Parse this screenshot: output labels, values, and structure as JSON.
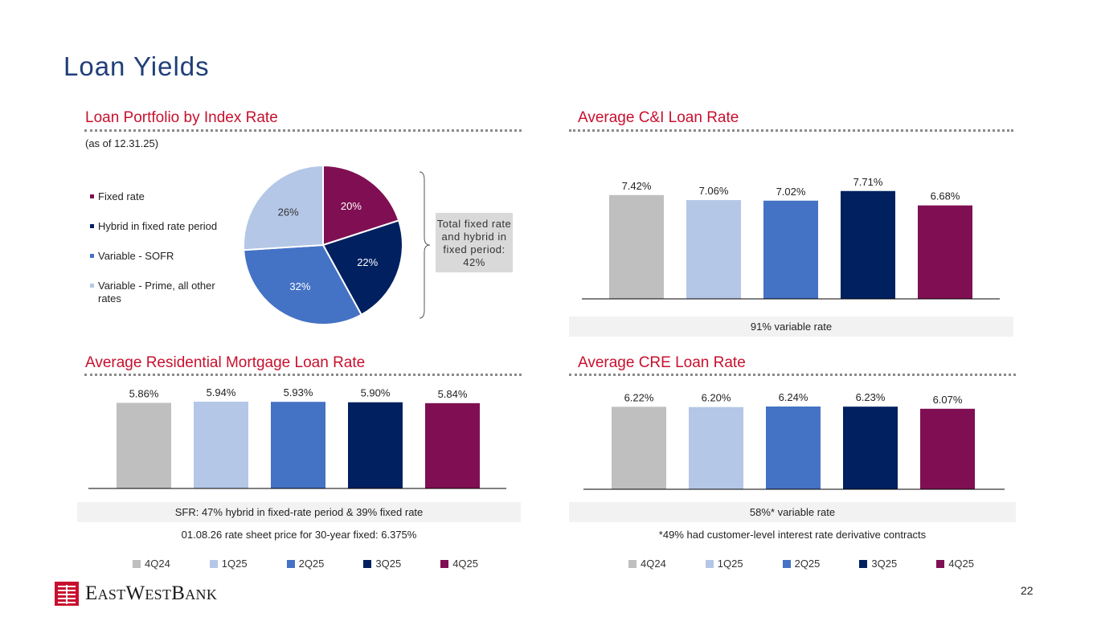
{
  "page": {
    "title": "Loan Yields",
    "page_number": "22",
    "logo_text": "EastWestBank"
  },
  "colors": {
    "title": "#1f3f78",
    "section_title": "#c8102e",
    "series": [
      "#bfbfbf",
      "#b4c7e7",
      "#4472c4",
      "#002060",
      "#7f0f52"
    ],
    "pie": [
      "#7f0f52",
      "#002060",
      "#4472c4",
      "#b4c7e7"
    ]
  },
  "sections": {
    "portfolio": {
      "title": "Loan Portfolio by Index Rate",
      "subtitle": "(as of 12.31.25)",
      "callout": "Total fixed rate and hybrid in fixed period: 42%"
    },
    "ci": {
      "title": "Average C&I Loan Rate",
      "note": "91% variable rate"
    },
    "residential": {
      "title": "Average Residential Mortgage Loan Rate",
      "note": "SFR: 47% hybrid in fixed-rate period & 39% fixed rate",
      "footnote": "01.08.26 rate sheet price for 30-year fixed: 6.375%"
    },
    "cre": {
      "title": "Average CRE Loan Rate",
      "note": "58%* variable rate",
      "footnote": "*49% had customer-level interest rate derivative contracts"
    }
  },
  "bar_legend": [
    "4Q24",
    "1Q25",
    "2Q25",
    "3Q25",
    "4Q25"
  ],
  "chart_data": [
    {
      "id": "portfolio",
      "type": "pie",
      "title": "Loan Portfolio by Index Rate",
      "labels": [
        "Fixed rate",
        "Hybrid in fixed rate period",
        "Variable - SOFR",
        "Variable - Prime, all other rates"
      ],
      "values": [
        20,
        22,
        32,
        26
      ],
      "data_labels": [
        "20%",
        "22%",
        "32%",
        "26%"
      ]
    },
    {
      "id": "ci",
      "type": "bar",
      "title": "Average C&I Loan Rate",
      "categories": [
        "4Q24",
        "1Q25",
        "2Q25",
        "3Q25",
        "4Q25"
      ],
      "values": [
        7.42,
        7.06,
        7.02,
        7.71,
        6.68
      ],
      "data_labels": [
        "7.42%",
        "7.06%",
        "7.02%",
        "7.71%",
        "6.68%"
      ],
      "ylim": [
        0,
        8.5
      ]
    },
    {
      "id": "residential",
      "type": "bar",
      "title": "Average Residential Mortgage Loan Rate",
      "categories": [
        "4Q24",
        "1Q25",
        "2Q25",
        "3Q25",
        "4Q25"
      ],
      "values": [
        5.86,
        5.94,
        5.93,
        5.9,
        5.84
      ],
      "data_labels": [
        "5.86%",
        "5.94%",
        "5.93%",
        "5.90%",
        "5.84%"
      ],
      "ylim": [
        0,
        5.94
      ]
    },
    {
      "id": "cre",
      "type": "bar",
      "title": "Average CRE Loan Rate",
      "categories": [
        "4Q24",
        "1Q25",
        "2Q25",
        "3Q25",
        "4Q25"
      ],
      "values": [
        6.22,
        6.2,
        6.24,
        6.23,
        6.07
      ],
      "data_labels": [
        "6.22%",
        "6.20%",
        "6.24%",
        "6.23%",
        "6.07%"
      ],
      "ylim": [
        0,
        6.24
      ]
    }
  ]
}
